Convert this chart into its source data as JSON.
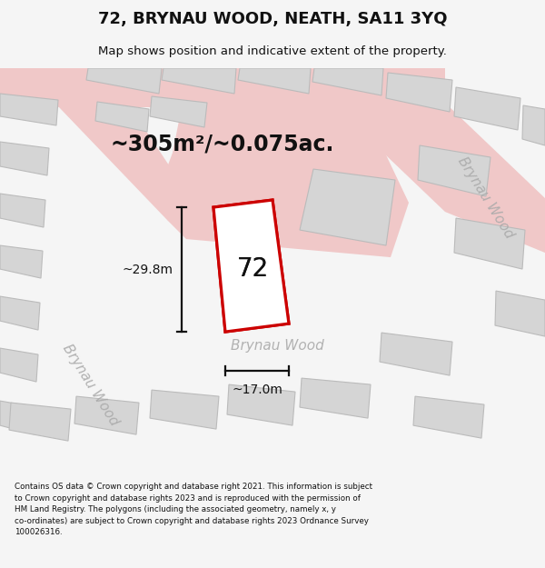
{
  "title": "72, BRYNAU WOOD, NEATH, SA11 3YQ",
  "subtitle": "Map shows position and indicative extent of the property.",
  "footer": "Contains OS data © Crown copyright and database right 2021. This information is subject\nto Crown copyright and database rights 2023 and is reproduced with the permission of\nHM Land Registry. The polygons (including the associated geometry, namely x, y\nco-ordinates) are subject to Crown copyright and database rights 2023 Ordnance Survey\n100026316.",
  "area_label": "~305m²/~0.075ac.",
  "number_label": "72",
  "street_label_horiz": "Brynau Wood",
  "street_label_right": "Brynau Wood",
  "street_label_left": "Brynau Wood",
  "dim_width": "~17.0m",
  "dim_height": "~29.8m",
  "bg_color": "#f5f5f5",
  "map_bg": "#eeecec",
  "plot_fill": "#ffffff",
  "plot_edge": "#cc0000",
  "road_color": "#f0c8c8",
  "building_fill": "#d5d5d5",
  "building_edge": "#bbbbbb",
  "dim_color": "#111111",
  "text_color": "#111111",
  "street_text_color": "#aaaaaa"
}
